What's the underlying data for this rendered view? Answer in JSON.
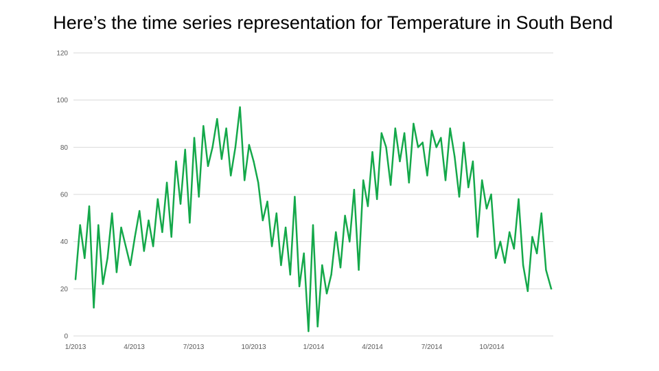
{
  "slide": {
    "title": "Here’s the time series representation for Temperature in South Bend"
  },
  "colors": {
    "series": "#14a84a",
    "grid": "#d9d9d9",
    "tick_text": "#595959"
  },
  "chart_data": {
    "type": "line",
    "title": "",
    "xlabel": "",
    "ylabel": "",
    "ylim": [
      0,
      120
    ],
    "yticks": [
      "0",
      "20",
      "40",
      "60",
      "80",
      "100",
      "120"
    ],
    "xticks": [
      "1/2013",
      "4/2013",
      "7/2013",
      "10/2013",
      "1/2014",
      "4/2014",
      "7/2014",
      "10/2014"
    ],
    "xlim": [
      "2013-01-01",
      "2014-12-31"
    ],
    "grid": true,
    "legend": "none",
    "series": [
      {
        "name": "",
        "sampling": "approximate weekly readings (chart shows daily values)",
        "x": [
          "2013-01-01",
          "2013-01-08",
          "2013-01-15",
          "2013-01-22",
          "2013-01-29",
          "2013-02-05",
          "2013-02-12",
          "2013-02-19",
          "2013-02-26",
          "2013-03-05",
          "2013-03-12",
          "2013-03-19",
          "2013-03-26",
          "2013-04-02",
          "2013-04-09",
          "2013-04-16",
          "2013-04-23",
          "2013-04-30",
          "2013-05-07",
          "2013-05-14",
          "2013-05-21",
          "2013-05-28",
          "2013-06-04",
          "2013-06-11",
          "2013-06-18",
          "2013-06-25",
          "2013-07-02",
          "2013-07-09",
          "2013-07-16",
          "2013-07-23",
          "2013-07-30",
          "2013-08-06",
          "2013-08-13",
          "2013-08-20",
          "2013-08-27",
          "2013-09-03",
          "2013-09-10",
          "2013-09-17",
          "2013-09-24",
          "2013-10-01",
          "2013-10-08",
          "2013-10-15",
          "2013-10-22",
          "2013-10-29",
          "2013-11-05",
          "2013-11-12",
          "2013-11-19",
          "2013-11-26",
          "2013-12-03",
          "2013-12-10",
          "2013-12-17",
          "2013-12-24",
          "2013-12-31",
          "2014-01-07",
          "2014-01-14",
          "2014-01-21",
          "2014-01-28",
          "2014-02-04",
          "2014-02-11",
          "2014-02-18",
          "2014-02-25",
          "2014-03-04",
          "2014-03-11",
          "2014-03-18",
          "2014-03-25",
          "2014-04-01",
          "2014-04-08",
          "2014-04-15",
          "2014-04-22",
          "2014-04-29",
          "2014-05-06",
          "2014-05-13",
          "2014-05-20",
          "2014-05-27",
          "2014-06-03",
          "2014-06-10",
          "2014-06-17",
          "2014-06-24",
          "2014-07-01",
          "2014-07-08",
          "2014-07-15",
          "2014-07-22",
          "2014-07-29",
          "2014-08-05",
          "2014-08-12",
          "2014-08-19",
          "2014-08-26",
          "2014-09-02",
          "2014-09-09",
          "2014-09-16",
          "2014-09-23",
          "2014-09-30",
          "2014-10-07",
          "2014-10-14",
          "2014-10-21",
          "2014-10-28",
          "2014-11-04",
          "2014-11-11",
          "2014-11-18",
          "2014-11-25",
          "2014-12-02",
          "2014-12-09",
          "2014-12-16",
          "2014-12-23",
          "2014-12-31"
        ],
        "y": [
          24,
          47,
          33,
          55,
          12,
          47,
          22,
          33,
          52,
          27,
          46,
          38,
          30,
          42,
          53,
          36,
          49,
          38,
          58,
          44,
          65,
          42,
          74,
          56,
          79,
          48,
          84,
          59,
          89,
          72,
          80,
          92,
          75,
          88,
          68,
          80,
          97,
          66,
          81,
          74,
          65,
          49,
          57,
          38,
          52,
          30,
          46,
          26,
          59,
          21,
          35,
          2,
          47,
          4,
          30,
          18,
          26,
          44,
          29,
          51,
          40,
          62,
          28,
          66,
          55,
          78,
          58,
          86,
          80,
          64,
          88,
          74,
          86,
          65,
          90,
          80,
          82,
          68,
          87,
          80,
          84,
          66,
          88,
          76,
          59,
          82,
          63,
          74,
          42,
          66,
          54,
          60,
          33,
          40,
          31,
          44,
          37,
          58,
          30,
          19,
          42,
          35,
          52,
          28,
          20
        ]
      }
    ]
  }
}
